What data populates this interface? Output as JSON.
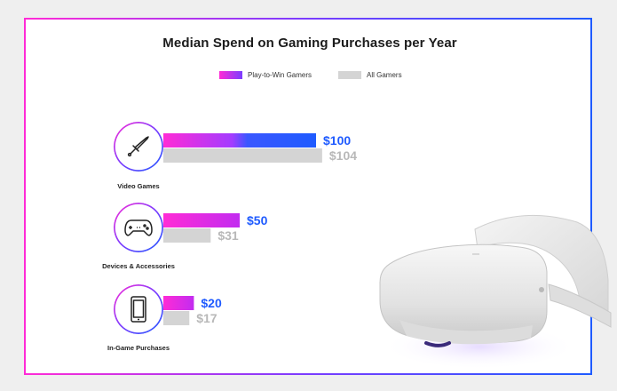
{
  "chart_data": {
    "type": "bar",
    "orientation": "horizontal",
    "title": "Median Spend on Gaming Purchases per Year",
    "categories": [
      "Video Games",
      "Devices & Accessories",
      "In-Game Purchases"
    ],
    "series": [
      {
        "name": "Play-to-Win Gamers",
        "values": [
          100,
          50,
          20
        ],
        "labels": [
          "$100",
          "$50",
          "$20"
        ],
        "color": "#ff2bd6",
        "color_end": "#1f5bff",
        "label_color": "#1f5bff"
      },
      {
        "name": "All Gamers",
        "values": [
          104,
          31,
          17
        ],
        "labels": [
          "$104",
          "$31",
          "$17"
        ],
        "color": "#d4d4d4",
        "label_color": "#b8b8b8"
      }
    ],
    "legend_position": "top-center",
    "grid": false
  },
  "icons": [
    "sword-icon",
    "gamepad-icon",
    "smartphone-icon"
  ],
  "colors": {
    "accent_pink": "#ff2bd6",
    "accent_purple": "#7a3cff",
    "accent_blue": "#1f5bff",
    "gray_bar": "#d4d4d4"
  }
}
